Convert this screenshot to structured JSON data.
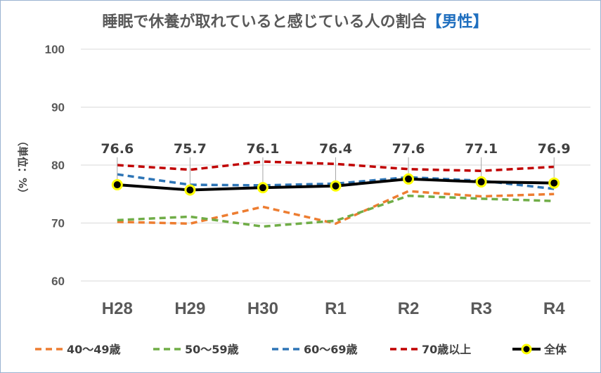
{
  "chart_data": {
    "type": "line",
    "title": "睡眠で休養が取れていると感じている人の割合",
    "title_suffix": "【男性】",
    "ylabel": "（単位：%）",
    "ylim": [
      60,
      100
    ],
    "yticks": [
      60,
      70,
      80,
      90,
      100
    ],
    "grid": true,
    "legend_position": "bottom",
    "categories": [
      "H28",
      "H29",
      "H30",
      "R1",
      "R2",
      "R3",
      "R4"
    ],
    "series": [
      {
        "name": "40～49歳",
        "color": "#ed7d31",
        "style": "dashed",
        "values": [
          70.2,
          69.9,
          72.8,
          69.9,
          75.5,
          74.6,
          75.0
        ]
      },
      {
        "name": "50～59歳",
        "color": "#70ad47",
        "style": "dashed",
        "values": [
          70.5,
          71.1,
          69.4,
          70.4,
          74.7,
          74.2,
          73.8
        ]
      },
      {
        "name": "60～69歳",
        "color": "#2e75b6",
        "style": "dashed",
        "values": [
          78.4,
          76.6,
          76.5,
          76.8,
          77.9,
          77.3,
          75.9
        ]
      },
      {
        "name": "70歳以上",
        "color": "#c00000",
        "style": "dashed",
        "values": [
          80.0,
          79.2,
          80.6,
          80.2,
          79.3,
          79.0,
          79.7
        ]
      },
      {
        "name": "全体",
        "color": "#000000",
        "style": "solid",
        "marker": "yellow-circle",
        "values": [
          76.6,
          75.7,
          76.1,
          76.4,
          77.6,
          77.1,
          76.9
        ],
        "labels": [
          "76.6",
          "75.7",
          "76.1",
          "76.4",
          "77.6",
          "77.1",
          "76.9"
        ]
      }
    ]
  }
}
